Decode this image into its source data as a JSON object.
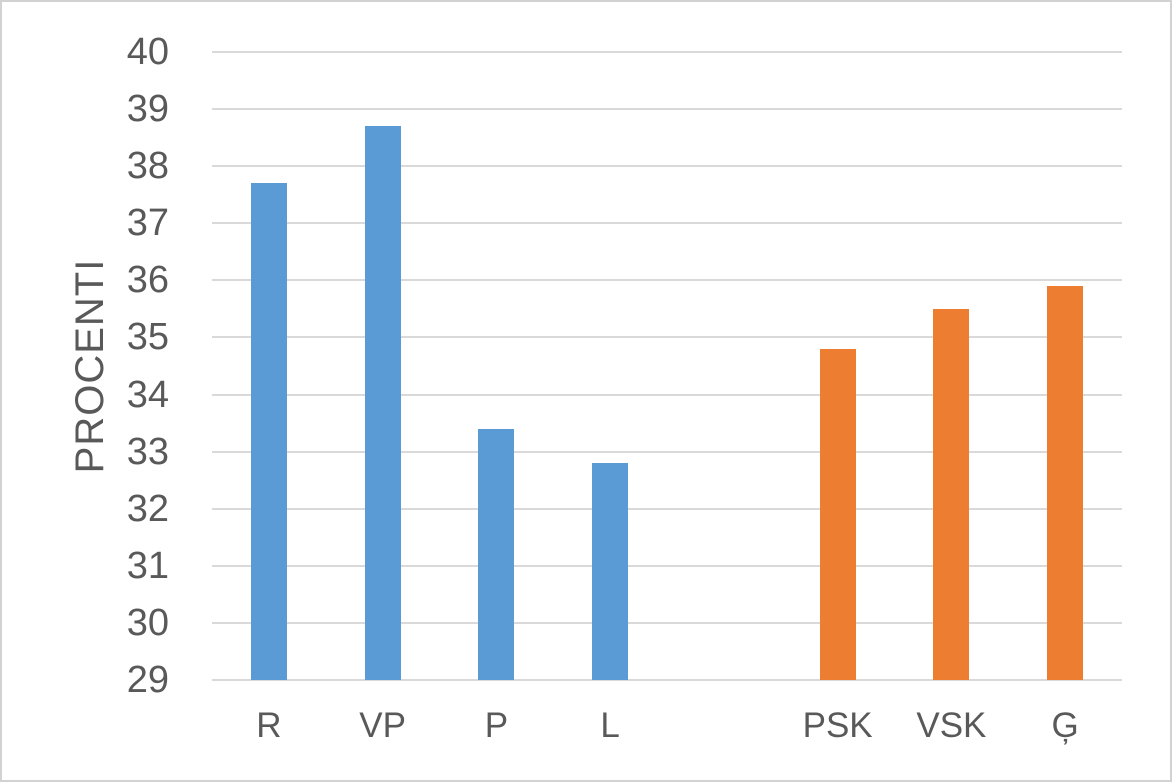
{
  "chart_data": {
    "type": "bar",
    "title": "",
    "xlabel": "",
    "ylabel": "PROCENTI",
    "ylim": [
      29,
      40
    ],
    "yticks": [
      29,
      30,
      31,
      32,
      33,
      34,
      35,
      36,
      37,
      38,
      39,
      40
    ],
    "grid": true,
    "legend": "none",
    "categories": [
      "R",
      "VP",
      "P",
      "L",
      "",
      "PSK",
      "VSK",
      "Ģ"
    ],
    "values": [
      37.7,
      38.7,
      33.4,
      32.8,
      null,
      34.8,
      35.5,
      35.9
    ],
    "bar_colors": [
      "#5B9BD5",
      "#5B9BD5",
      "#5B9BD5",
      "#5B9BD5",
      null,
      "#ED7D31",
      "#ED7D31",
      "#ED7D31"
    ]
  },
  "style": {
    "series_blue": "#5B9BD5",
    "series_orange": "#ED7D31",
    "gridline_color": "#D9D9D9",
    "axis_text_color": "#595959",
    "background": "#FFFFFF",
    "frame_border": "#D2D2D2"
  }
}
